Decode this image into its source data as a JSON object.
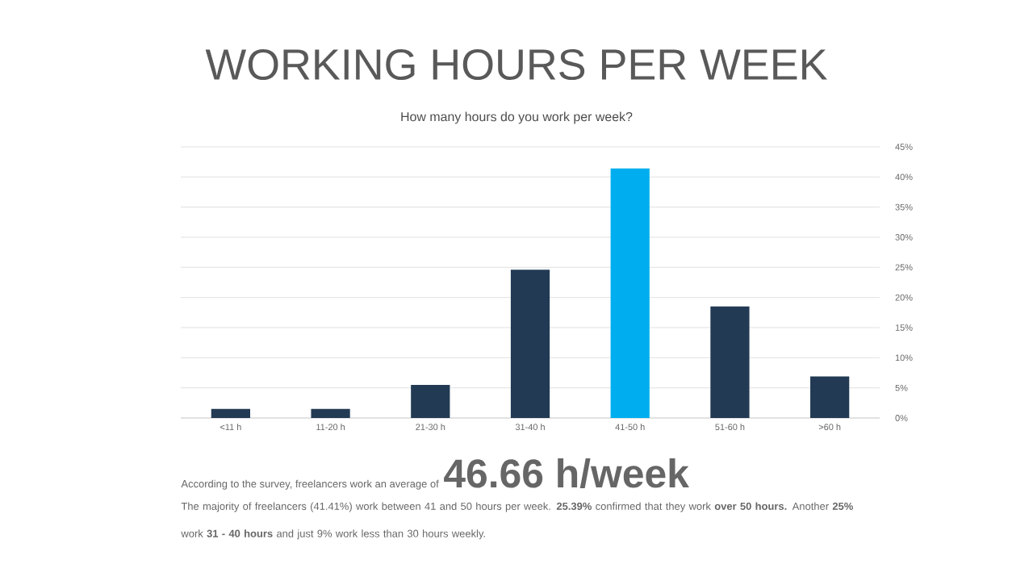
{
  "chart_data": {
    "type": "bar",
    "title": "WORKING HOURS PER WEEK",
    "subtitle": "How many hours do you work per week?",
    "categories": [
      "<11 h",
      "11-20 h",
      "21-30 h",
      "31-40 h",
      "41-50 h",
      "51-60 h",
      ">60 h"
    ],
    "values": [
      1.5,
      1.5,
      5.5,
      24.6,
      41.41,
      18.5,
      6.9
    ],
    "colors": [
      "#223a54",
      "#223a54",
      "#223a54",
      "#223a54",
      "#00aeef",
      "#223a54",
      "#223a54"
    ],
    "ylim": [
      0,
      45
    ],
    "yticks": [
      {
        "value": 0,
        "label": "0%"
      },
      {
        "value": 5,
        "label": "5%"
      },
      {
        "value": 10,
        "label": "10%"
      },
      {
        "value": 15,
        "label": "15%"
      },
      {
        "value": 20,
        "label": "20%"
      },
      {
        "value": 25,
        "label": "25%"
      },
      {
        "value": 30,
        "label": "30%"
      },
      {
        "value": 35,
        "label": "35%"
      },
      {
        "value": 40,
        "label": "40%"
      },
      {
        "value": 45,
        "label": "45%"
      }
    ],
    "grid": "y",
    "annotations": [
      "According to the survey, freelancers work an average of",
      "46.66 h/week",
      "The majority of freelancers (41.41%) work between 41 and 50 hours per week. **25.39%** confirmed that they work **over 50 hours.** Another **25%** work **31 - 40 hours** and just 9% work less than 30 hours weekly."
    ]
  }
}
